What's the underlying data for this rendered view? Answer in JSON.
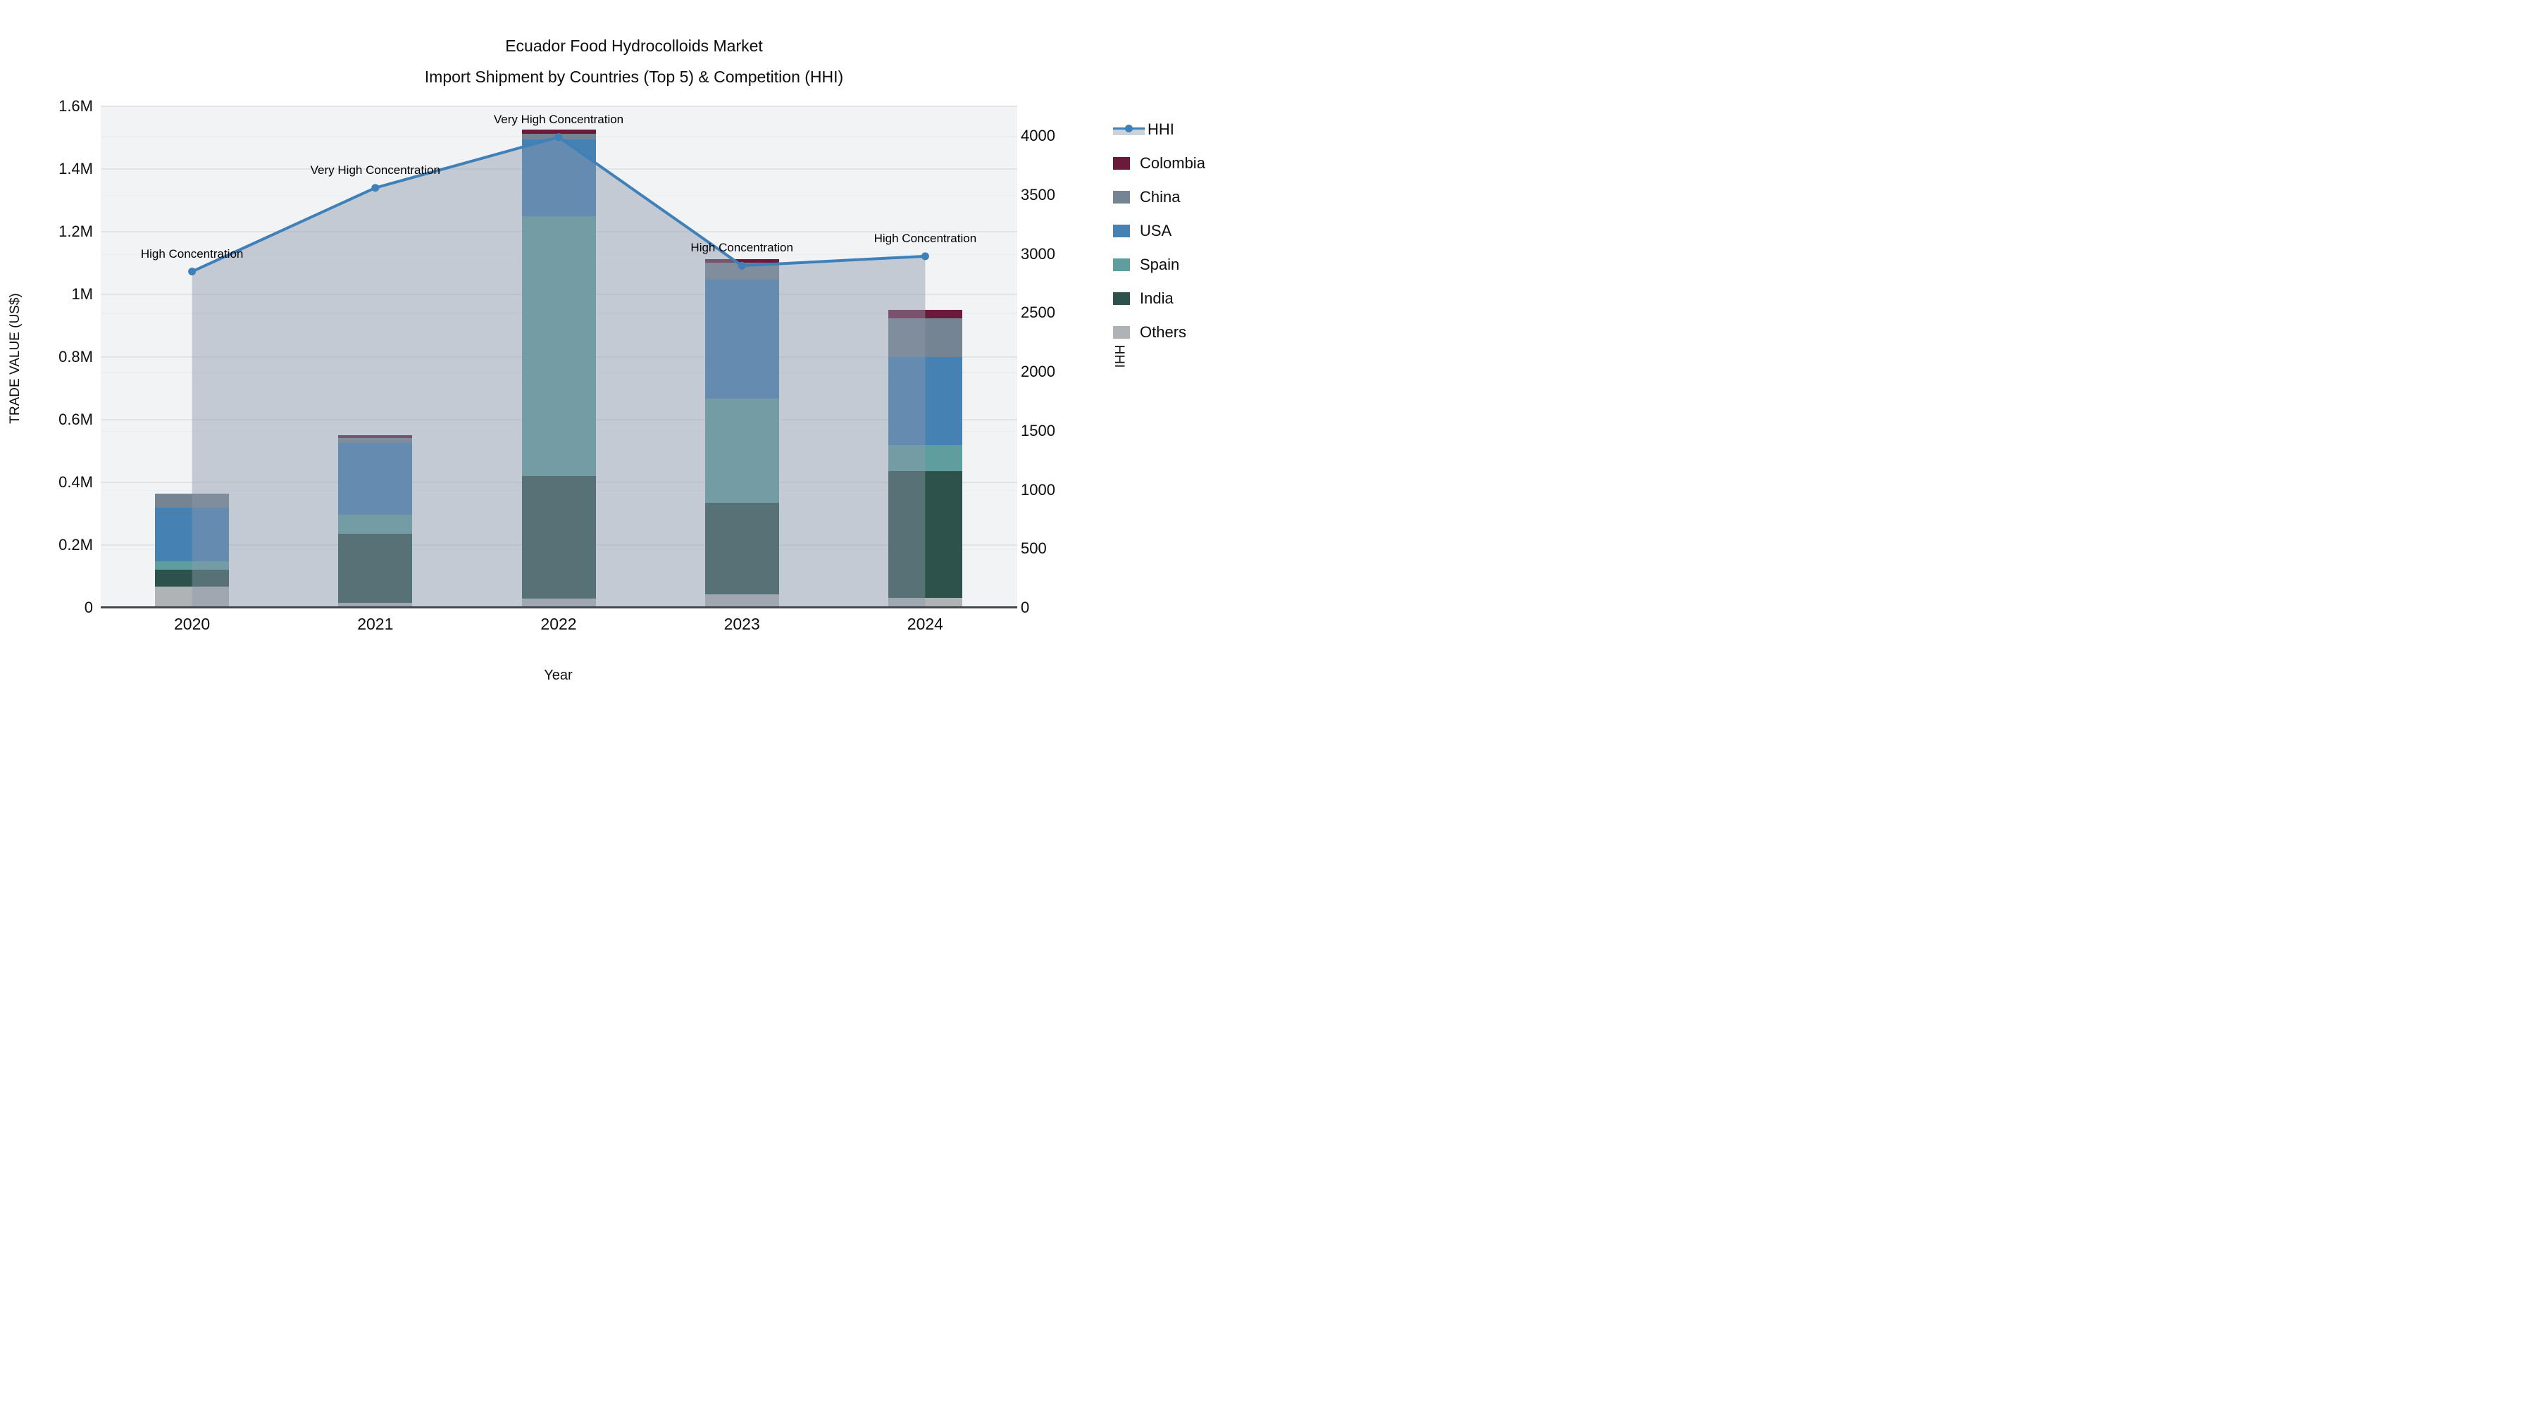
{
  "styles": {
    "plot_bg": "#f2f3f4",
    "grid_left": "#e2e4e8",
    "grid_right": "#ecedf0",
    "axis_line": "#444950",
    "text": "#111111",
    "hhi_line": "#4080b8",
    "area_fill": "rgba(139,153,171,0.45)"
  },
  "chart_data": {
    "type": "bar-line-combo",
    "title": "Ecuador Food Hydrocolloids Market",
    "subtitle": "Import Shipment by Countries (Top 5) & Competition (HHI)",
    "categories": [
      "2020",
      "2021",
      "2022",
      "2023",
      "2024"
    ],
    "series": [
      {
        "name": "Others",
        "color": "#b0b3b6",
        "values": [
          64000,
          12000,
          25000,
          39000,
          27000
        ]
      },
      {
        "name": "India",
        "color": "#2d524b",
        "values": [
          52000,
          220000,
          390000,
          292000,
          404000
        ]
      },
      {
        "name": "Spain",
        "color": "#5f9e9e",
        "values": [
          27000,
          60000,
          830000,
          333000,
          83000
        ]
      },
      {
        "name": "USA",
        "color": "#4681b4",
        "values": [
          172000,
          230000,
          245000,
          378000,
          281000
        ]
      },
      {
        "name": "China",
        "color": "#758492",
        "values": [
          44000,
          16000,
          17000,
          55000,
          123000
        ]
      },
      {
        "name": "Colombia",
        "color": "#6b1a3b",
        "values": [
          0,
          8000,
          15000,
          11000,
          27000
        ]
      }
    ],
    "line_series": {
      "name": "HHI",
      "color": "#4080b8",
      "values": [
        2850,
        3560,
        3990,
        2900,
        2980
      ]
    },
    "point_annotations": [
      "High Concentration",
      "Very High Concentration",
      "Very High Concentration",
      "High Concentration",
      "High Concentration"
    ],
    "left_axis": {
      "title": "TRADE VALUE (US$)",
      "tick_labels": [
        "0",
        "0.2M",
        "0.4M",
        "0.6M",
        "0.8M",
        "1M",
        "1.2M",
        "1.4M",
        "1.6M"
      ],
      "range": [
        0,
        1600000
      ]
    },
    "right_axis": {
      "title": "HHI",
      "tick_labels": [
        "0",
        "500",
        "1000",
        "1500",
        "2000",
        "2500",
        "3000",
        "3500",
        "4000"
      ],
      "range": [
        0,
        4000
      ]
    },
    "x_axis": {
      "title": "Year"
    },
    "legend_order": [
      "HHI",
      "Colombia",
      "China",
      "USA",
      "Spain",
      "India",
      "Others"
    ],
    "grid": true,
    "legend_position": "right"
  }
}
